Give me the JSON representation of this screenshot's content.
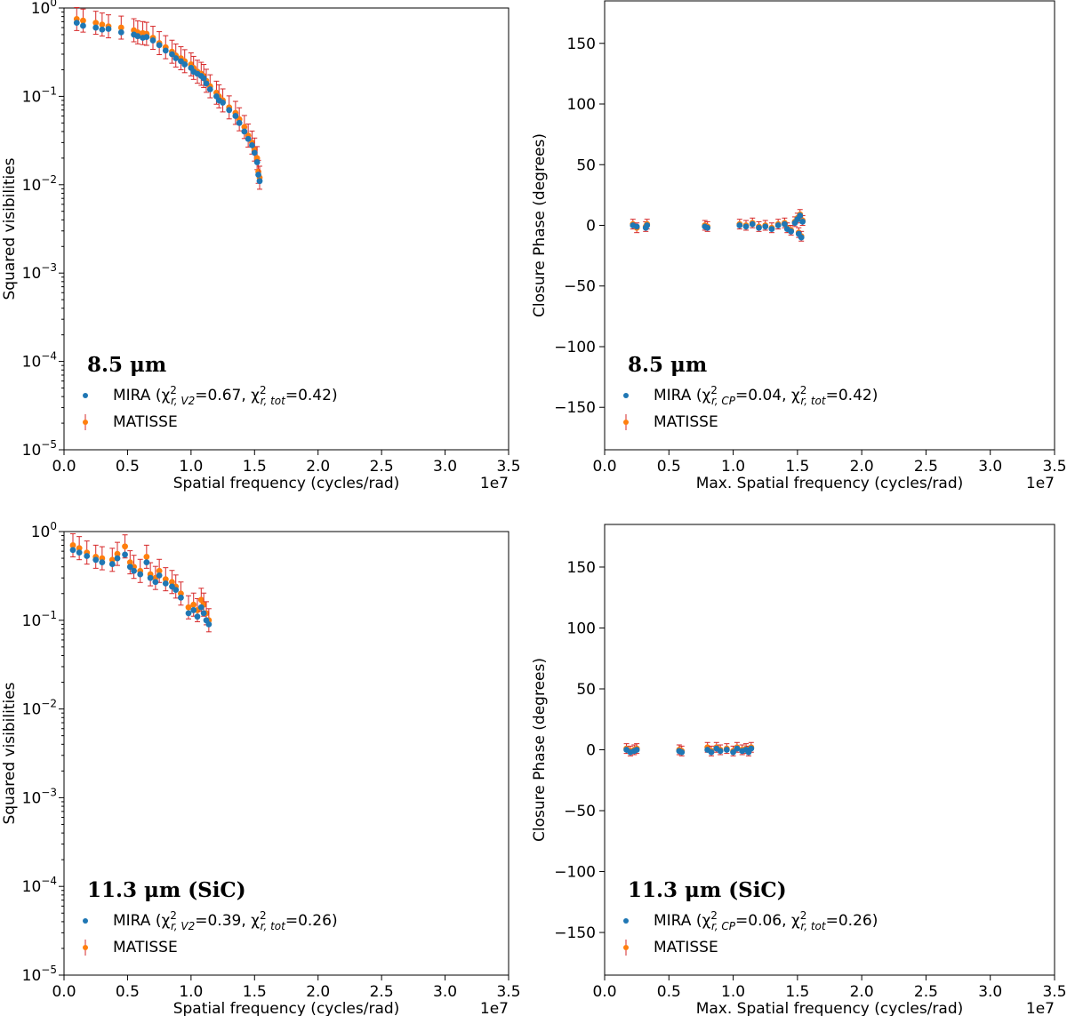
{
  "figure": {
    "offset_label": "1e7"
  },
  "legend": {
    "mira_label": "MIRA",
    "matisse_label": "MATISSE"
  },
  "colors": {
    "mira": "#1f77b4",
    "matisse": "#ff7f0e",
    "errorbar": "#d62728"
  },
  "chart_data": [
    {
      "type": "scatter",
      "panel": "top-left",
      "annotation": "8.5 μm",
      "legend_mira_stats": "(χ²r,V2=0.67, χ²r,tot=0.42)",
      "xlabel": "Spatial frequency (cycles/rad)",
      "ylabel": "Squared visibilities",
      "xlim": [
        0,
        3.5
      ],
      "ylim": [
        1e-05,
        1
      ],
      "yscale": "log",
      "xticks": [
        "0.0",
        "0.5",
        "1.0",
        "1.5",
        "2.0",
        "2.5",
        "3.0",
        "3.5"
      ],
      "yticks": [
        "10^0",
        "10^-1",
        "10^-2",
        "10^-3",
        "10^-4",
        "10^-5"
      ],
      "legend_position": "lower-left",
      "series": [
        {
          "name": "MIRA",
          "points": [
            [
              0.1,
              0.68
            ],
            [
              0.15,
              0.63
            ],
            [
              0.25,
              0.6
            ],
            [
              0.3,
              0.57
            ],
            [
              0.35,
              0.58
            ],
            [
              0.45,
              0.53
            ],
            [
              0.55,
              0.5
            ],
            [
              0.58,
              0.48
            ],
            [
              0.62,
              0.46
            ],
            [
              0.65,
              0.47
            ],
            [
              0.7,
              0.43
            ],
            [
              0.75,
              0.38
            ],
            [
              0.8,
              0.33
            ],
            [
              0.85,
              0.3
            ],
            [
              0.88,
              0.27
            ],
            [
              0.92,
              0.25
            ],
            [
              0.95,
              0.23
            ],
            [
              1.0,
              0.21
            ],
            [
              1.02,
              0.19
            ],
            [
              1.05,
              0.18
            ],
            [
              1.08,
              0.17
            ],
            [
              1.1,
              0.16
            ],
            [
              1.12,
              0.14
            ],
            [
              1.15,
              0.12
            ],
            [
              1.2,
              0.1
            ],
            [
              1.22,
              0.09
            ],
            [
              1.25,
              0.085
            ],
            [
              1.3,
              0.07
            ],
            [
              1.35,
              0.06
            ],
            [
              1.38,
              0.05
            ],
            [
              1.42,
              0.04
            ],
            [
              1.45,
              0.033
            ],
            [
              1.48,
              0.028
            ],
            [
              1.5,
              0.023
            ],
            [
              1.52,
              0.018
            ],
            [
              1.53,
              0.013
            ],
            [
              1.54,
              0.011
            ]
          ]
        },
        {
          "name": "MATISSE",
          "points": [
            [
              0.1,
              0.75
            ],
            [
              0.15,
              0.72
            ],
            [
              0.25,
              0.68
            ],
            [
              0.3,
              0.65
            ],
            [
              0.35,
              0.62
            ],
            [
              0.45,
              0.6
            ],
            [
              0.55,
              0.56
            ],
            [
              0.58,
              0.53
            ],
            [
              0.62,
              0.52
            ],
            [
              0.65,
              0.51
            ],
            [
              0.7,
              0.46
            ],
            [
              0.75,
              0.4
            ],
            [
              0.8,
              0.36
            ],
            [
              0.85,
              0.32
            ],
            [
              0.88,
              0.29
            ],
            [
              0.92,
              0.27
            ],
            [
              0.95,
              0.25
            ],
            [
              1.0,
              0.23
            ],
            [
              1.02,
              0.21
            ],
            [
              1.05,
              0.19
            ],
            [
              1.08,
              0.18
            ],
            [
              1.1,
              0.17
            ],
            [
              1.12,
              0.15
            ],
            [
              1.15,
              0.13
            ],
            [
              1.2,
              0.11
            ],
            [
              1.22,
              0.1
            ],
            [
              1.25,
              0.09
            ],
            [
              1.3,
              0.075
            ],
            [
              1.35,
              0.065
            ],
            [
              1.38,
              0.055
            ],
            [
              1.42,
              0.045
            ],
            [
              1.45,
              0.036
            ],
            [
              1.48,
              0.03
            ],
            [
              1.5,
              0.025
            ],
            [
              1.52,
              0.02
            ],
            [
              1.53,
              0.014
            ],
            [
              1.54,
              0.012
            ]
          ]
        }
      ]
    },
    {
      "type": "scatter",
      "panel": "top-right",
      "annotation": "8.5 μm",
      "legend_mira_stats": "(χ²r,CP=0.04, χ²r,tot=0.42)",
      "xlabel": "Max. Spatial frequency (cycles/rad)",
      "ylabel": "Closure Phase (degrees)",
      "xlim": [
        0,
        3.5
      ],
      "ylim": [
        -185,
        185
      ],
      "yscale": "linear",
      "xticks": [
        "0.0",
        "0.5",
        "1.0",
        "1.5",
        "2.0",
        "2.5",
        "3.0",
        "3.5"
      ],
      "yticks": [
        "150",
        "100",
        "50",
        "0",
        "−50",
        "−100",
        "−150"
      ],
      "legend_position": "lower-left",
      "series": [
        {
          "name": "MIRA",
          "points": [
            [
              0.22,
              0
            ],
            [
              0.25,
              -1
            ],
            [
              0.32,
              -2
            ],
            [
              0.33,
              0
            ],
            [
              0.78,
              -1
            ],
            [
              0.8,
              -2
            ],
            [
              1.05,
              0
            ],
            [
              1.1,
              -1
            ],
            [
              1.15,
              1
            ],
            [
              1.2,
              -2
            ],
            [
              1.25,
              -1
            ],
            [
              1.3,
              -3
            ],
            [
              1.35,
              0
            ],
            [
              1.4,
              1
            ],
            [
              1.42,
              -3
            ],
            [
              1.45,
              -5
            ],
            [
              1.48,
              2
            ],
            [
              1.5,
              5
            ],
            [
              1.51,
              -7
            ],
            [
              1.52,
              8
            ],
            [
              1.53,
              -10
            ],
            [
              1.54,
              3
            ]
          ]
        },
        {
          "name": "MATISSE",
          "points": [
            [
              0.22,
              1
            ],
            [
              0.25,
              -2
            ],
            [
              0.32,
              -1
            ],
            [
              0.33,
              1
            ],
            [
              0.78,
              0
            ],
            [
              0.8,
              -1
            ],
            [
              1.05,
              1
            ],
            [
              1.1,
              0
            ],
            [
              1.15,
              2
            ],
            [
              1.2,
              -1
            ],
            [
              1.25,
              0
            ],
            [
              1.3,
              -2
            ],
            [
              1.35,
              1
            ],
            [
              1.4,
              2
            ],
            [
              1.42,
              -2
            ],
            [
              1.45,
              -4
            ],
            [
              1.48,
              3
            ],
            [
              1.5,
              6
            ],
            [
              1.51,
              -6
            ],
            [
              1.52,
              9
            ],
            [
              1.53,
              -9
            ],
            [
              1.54,
              4
            ]
          ]
        }
      ]
    },
    {
      "type": "scatter",
      "panel": "bottom-left",
      "annotation": "11.3 μm (SiC)",
      "legend_mira_stats": "(χ²r,V2=0.39, χ²r,tot=0.26)",
      "xlabel": "Spatial frequency (cycles/rad)",
      "ylabel": "Squared visibilities",
      "xlim": [
        0,
        3.5
      ],
      "ylim": [
        1e-05,
        1
      ],
      "yscale": "log",
      "xticks": [
        "0.0",
        "0.5",
        "1.0",
        "1.5",
        "2.0",
        "2.5",
        "3.0",
        "3.5"
      ],
      "yticks": [
        "10^0",
        "10^-1",
        "10^-2",
        "10^-3",
        "10^-4",
        "10^-5"
      ],
      "legend_position": "lower-left",
      "series": [
        {
          "name": "MIRA",
          "points": [
            [
              0.07,
              0.62
            ],
            [
              0.12,
              0.58
            ],
            [
              0.18,
              0.53
            ],
            [
              0.25,
              0.48
            ],
            [
              0.3,
              0.45
            ],
            [
              0.38,
              0.43
            ],
            [
              0.42,
              0.5
            ],
            [
              0.48,
              0.55
            ],
            [
              0.52,
              0.4
            ],
            [
              0.55,
              0.36
            ],
            [
              0.6,
              0.33
            ],
            [
              0.65,
              0.45
            ],
            [
              0.68,
              0.3
            ],
            [
              0.72,
              0.27
            ],
            [
              0.75,
              0.32
            ],
            [
              0.8,
              0.26
            ],
            [
              0.85,
              0.24
            ],
            [
              0.88,
              0.22
            ],
            [
              0.92,
              0.18
            ],
            [
              0.98,
              0.12
            ],
            [
              1.02,
              0.13
            ],
            [
              1.05,
              0.11
            ],
            [
              1.08,
              0.14
            ],
            [
              1.1,
              0.12
            ],
            [
              1.12,
              0.1
            ],
            [
              1.14,
              0.09
            ]
          ]
        },
        {
          "name": "MATISSE",
          "points": [
            [
              0.07,
              0.7
            ],
            [
              0.12,
              0.65
            ],
            [
              0.18,
              0.58
            ],
            [
              0.25,
              0.52
            ],
            [
              0.3,
              0.5
            ],
            [
              0.38,
              0.48
            ],
            [
              0.42,
              0.56
            ],
            [
              0.48,
              0.68
            ],
            [
              0.52,
              0.45
            ],
            [
              0.55,
              0.4
            ],
            [
              0.6,
              0.36
            ],
            [
              0.65,
              0.52
            ],
            [
              0.68,
              0.33
            ],
            [
              0.72,
              0.3
            ],
            [
              0.75,
              0.36
            ],
            [
              0.8,
              0.29
            ],
            [
              0.85,
              0.27
            ],
            [
              0.88,
              0.24
            ],
            [
              0.92,
              0.2
            ],
            [
              0.98,
              0.14
            ],
            [
              1.02,
              0.15
            ],
            [
              1.05,
              0.13
            ],
            [
              1.08,
              0.17
            ],
            [
              1.1,
              0.15
            ],
            [
              1.12,
              0.12
            ],
            [
              1.14,
              0.1
            ]
          ]
        }
      ]
    },
    {
      "type": "scatter",
      "panel": "bottom-right",
      "annotation": "11.3 μm (SiC)",
      "legend_mira_stats": "(χ²r,CP=0.06, χ²r,tot=0.26)",
      "xlabel": "Max. Spatial frequency (cycles/rad)",
      "ylabel": "Closure Phase (degrees)",
      "xlim": [
        0,
        3.5
      ],
      "ylim": [
        -185,
        185
      ],
      "yscale": "linear",
      "xticks": [
        "0.0",
        "0.5",
        "1.0",
        "1.5",
        "2.0",
        "2.5",
        "3.0",
        "3.5"
      ],
      "yticks": [
        "150",
        "100",
        "50",
        "0",
        "−50",
        "−100",
        "−150"
      ],
      "legend_position": "lower-left",
      "series": [
        {
          "name": "MIRA",
          "points": [
            [
              0.17,
              0
            ],
            [
              0.2,
              -2
            ],
            [
              0.23,
              -1
            ],
            [
              0.25,
              0
            ],
            [
              0.58,
              -1
            ],
            [
              0.6,
              -2
            ],
            [
              0.8,
              0
            ],
            [
              0.83,
              -2
            ],
            [
              0.87,
              1
            ],
            [
              0.9,
              -1
            ],
            [
              0.95,
              0
            ],
            [
              1.0,
              -2
            ],
            [
              1.03,
              1
            ],
            [
              1.07,
              -1
            ],
            [
              1.1,
              0
            ],
            [
              1.12,
              -2
            ],
            [
              1.14,
              1
            ]
          ]
        },
        {
          "name": "MATISSE",
          "points": [
            [
              0.17,
              1
            ],
            [
              0.2,
              -1
            ],
            [
              0.23,
              0
            ],
            [
              0.25,
              1
            ],
            [
              0.58,
              0
            ],
            [
              0.6,
              -1
            ],
            [
              0.8,
              2
            ],
            [
              0.83,
              -1
            ],
            [
              0.87,
              2
            ],
            [
              0.9,
              0
            ],
            [
              0.95,
              1
            ],
            [
              1.0,
              -1
            ],
            [
              1.03,
              2
            ],
            [
              1.07,
              0
            ],
            [
              1.1,
              1
            ],
            [
              1.12,
              -1
            ],
            [
              1.14,
              2
            ]
          ]
        }
      ]
    }
  ]
}
